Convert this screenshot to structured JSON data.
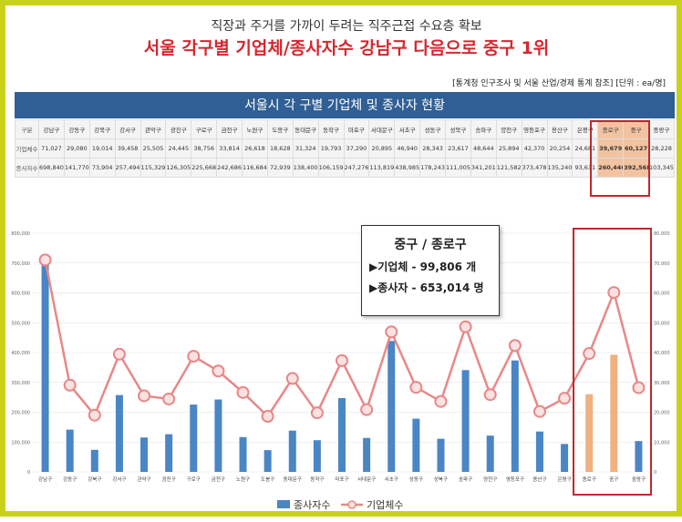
{
  "header": {
    "subtitle": "직장과 주거를 가까이 두려는 직주근접 수요층 확보",
    "title": "서울 각구별 기업체/종사자수 강남구 다음으로 중구 1위",
    "source": "[통계청 인구조사 및 서울 산업/경제 통계 참조] [단위 : ea/명]"
  },
  "table": {
    "title": "서울시 각 구별 기업체 및 종사자 현황",
    "header_label": "구분",
    "row_labels": [
      "기업체수",
      "종사자수"
    ],
    "columns": [
      "강남구",
      "강동구",
      "강북구",
      "강서구",
      "관악구",
      "광진구",
      "구로구",
      "금천구",
      "노원구",
      "도봉구",
      "동대문구",
      "동작구",
      "마포구",
      "서대문구",
      "서초구",
      "성동구",
      "성북구",
      "송파구",
      "양천구",
      "영등포구",
      "용산구",
      "은평구",
      "종로구",
      "중구",
      "중랑구"
    ],
    "companies": [
      "71,027",
      "29,080",
      "19,014",
      "39,458",
      "25,505",
      "24,445",
      "38,756",
      "33,814",
      "26,618",
      "18,628",
      "31,324",
      "19,793",
      "37,290",
      "20,895",
      "46,940",
      "28,343",
      "23,617",
      "48,644",
      "25,894",
      "42,370",
      "20,254",
      "24,681",
      "39,679",
      "60,127",
      "28,228"
    ],
    "employees": [
      "698,840",
      "141,770",
      "73,904",
      "257,494",
      "115,329",
      "126,305",
      "225,668",
      "242,686",
      "116,684",
      "72,939",
      "138,400",
      "106,159",
      "247,276",
      "113,819",
      "438,985",
      "178,243",
      "111,005",
      "341,201",
      "121,582",
      "373,478",
      "135,240",
      "93,631",
      "260,446",
      "392,568",
      "103,345"
    ],
    "highlight_columns": [
      "종로구",
      "중구"
    ]
  },
  "callout": {
    "title": "중구 / 종로구",
    "line1": "▶기업체 -    99,806 개",
    "line2": "▶종사자 - 653,014 명"
  },
  "colors": {
    "bar": "#4a86c5",
    "bar_highlight": "#f0b080",
    "line": "#e88888",
    "accent": "#c0282d",
    "frame": "#c8d21a",
    "table_header": "#2f5f94"
  },
  "chart_data": {
    "type": "bar",
    "categories": [
      "강남구",
      "강동구",
      "강북구",
      "강서구",
      "관악구",
      "광진구",
      "구로구",
      "금천구",
      "노원구",
      "도봉구",
      "동대문구",
      "동작구",
      "마포구",
      "서대문구",
      "서초구",
      "성동구",
      "성북구",
      "송파구",
      "양천구",
      "영등포구",
      "용산구",
      "은평구",
      "종로구",
      "중구",
      "중랑구"
    ],
    "series": [
      {
        "name": "종사자수",
        "type": "bar",
        "axis": "left",
        "values": [
          698840,
          141770,
          73904,
          257494,
          115329,
          126305,
          225668,
          242686,
          116684,
          72939,
          138400,
          106159,
          247276,
          113819,
          438985,
          178243,
          111005,
          341201,
          121582,
          373478,
          135240,
          93631,
          260446,
          392568,
          103345
        ]
      },
      {
        "name": "기업체수",
        "type": "line",
        "axis": "right",
        "values": [
          71027,
          29080,
          19014,
          39458,
          25505,
          24445,
          38756,
          33814,
          26618,
          18628,
          31324,
          19793,
          37290,
          20895,
          46940,
          28343,
          23617,
          48644,
          25894,
          42370,
          20254,
          24681,
          39679,
          60127,
          28228
        ]
      }
    ],
    "y_left": {
      "ylim": [
        0,
        800000
      ],
      "ticks": [
        "0",
        "100,000",
        "200,000",
        "300,000",
        "400,000",
        "500,000",
        "600,000",
        "700,000",
        "800,000"
      ]
    },
    "y_right": {
      "ylim": [
        0,
        80000
      ],
      "ticks": [
        "0",
        "10,000",
        "20,000",
        "30,000",
        "40,000",
        "50,000",
        "60,000",
        "70,000",
        "80,000"
      ]
    },
    "legend": {
      "position": "bottom",
      "bar_label": "종사자수",
      "line_label": "기업체수"
    },
    "highlight": [
      "종로구",
      "중구"
    ]
  }
}
